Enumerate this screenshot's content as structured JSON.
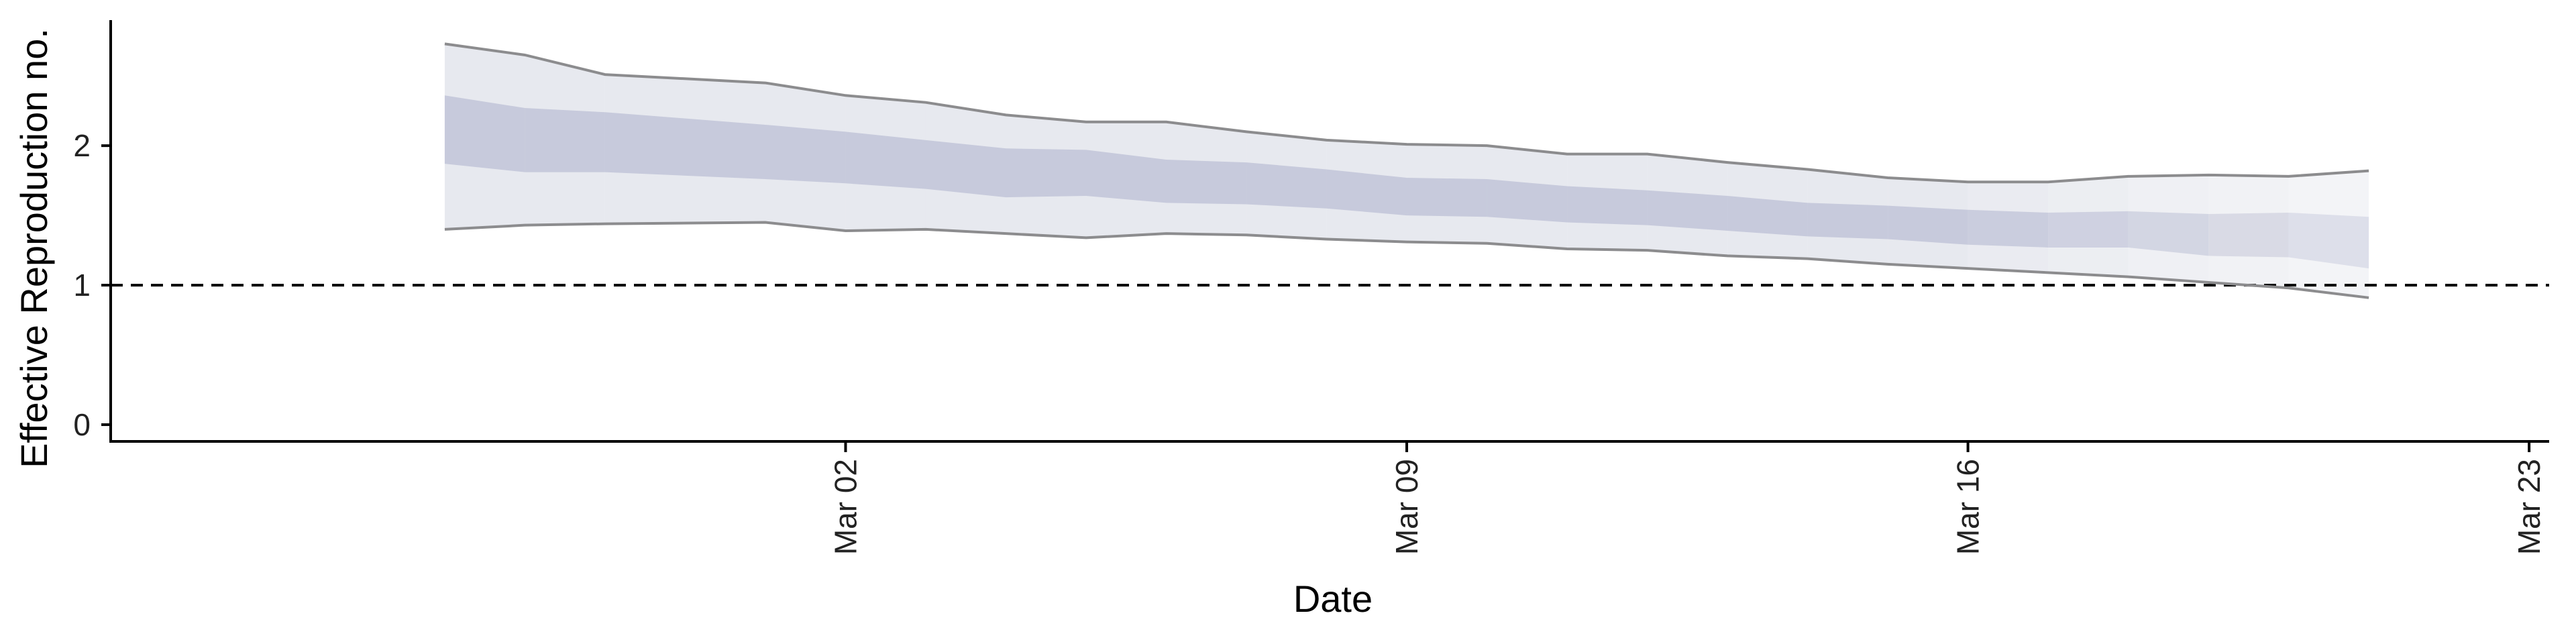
{
  "chart_data": {
    "type": "area",
    "xlabel": "Date",
    "ylabel": "Effective Reproduction no.",
    "x_ticks": [
      {
        "date": "2020-03-02",
        "label": "Mar 02"
      },
      {
        "date": "2020-03-09",
        "label": "Mar 09"
      },
      {
        "date": "2020-03-16",
        "label": "Mar 16"
      },
      {
        "date": "2020-03-23",
        "label": "Mar 23"
      }
    ],
    "y_ticks": [
      0,
      1,
      2
    ],
    "xlim": [
      "2020-02-21T20:00",
      "2020-03-23T06:00"
    ],
    "ylim": [
      -0.12,
      2.9
    ],
    "reference_line": 1,
    "grid": false,
    "colors": {
      "outer_band": "#e6e8ee",
      "inner_band": "#c3c6d9",
      "outer_line": "#8c8c8e",
      "reference_line": "#000000"
    },
    "series": [
      {
        "x": "2020-02-26",
        "lower_outer": 1.4,
        "lower_inner": 1.87,
        "upper_inner": 2.36,
        "upper_outer": 2.73
      },
      {
        "x": "2020-02-27",
        "lower_outer": 1.43,
        "lower_inner": 1.81,
        "upper_inner": 2.27,
        "upper_outer": 2.65
      },
      {
        "x": "2020-02-28",
        "lower_outer": 1.44,
        "lower_inner": 1.81,
        "upper_inner": 2.24,
        "upper_outer": 2.51
      },
      {
        "x": "2020-03-01",
        "lower_outer": 1.45,
        "lower_inner": 1.76,
        "upper_inner": 2.15,
        "upper_outer": 2.45
      },
      {
        "x": "2020-03-02",
        "lower_outer": 1.39,
        "lower_inner": 1.73,
        "upper_inner": 2.1,
        "upper_outer": 2.36
      },
      {
        "x": "2020-03-03",
        "lower_outer": 1.4,
        "lower_inner": 1.69,
        "upper_inner": 2.04,
        "upper_outer": 2.31
      },
      {
        "x": "2020-03-04",
        "lower_outer": 1.37,
        "lower_inner": 1.63,
        "upper_inner": 1.98,
        "upper_outer": 2.22
      },
      {
        "x": "2020-03-05",
        "lower_outer": 1.34,
        "lower_inner": 1.64,
        "upper_inner": 1.97,
        "upper_outer": 2.17
      },
      {
        "x": "2020-03-06",
        "lower_outer": 1.37,
        "lower_inner": 1.59,
        "upper_inner": 1.9,
        "upper_outer": 2.17
      },
      {
        "x": "2020-03-07",
        "lower_outer": 1.36,
        "lower_inner": 1.58,
        "upper_inner": 1.88,
        "upper_outer": 2.1
      },
      {
        "x": "2020-03-08",
        "lower_outer": 1.33,
        "lower_inner": 1.55,
        "upper_inner": 1.83,
        "upper_outer": 2.04
      },
      {
        "x": "2020-03-09",
        "lower_outer": 1.31,
        "lower_inner": 1.5,
        "upper_inner": 1.77,
        "upper_outer": 2.01
      },
      {
        "x": "2020-03-10",
        "lower_outer": 1.3,
        "lower_inner": 1.49,
        "upper_inner": 1.76,
        "upper_outer": 2.0
      },
      {
        "x": "2020-03-11",
        "lower_outer": 1.26,
        "lower_inner": 1.45,
        "upper_inner": 1.71,
        "upper_outer": 1.94
      },
      {
        "x": "2020-03-12",
        "lower_outer": 1.25,
        "lower_inner": 1.43,
        "upper_inner": 1.68,
        "upper_outer": 1.94
      },
      {
        "x": "2020-03-13",
        "lower_outer": 1.21,
        "lower_inner": 1.39,
        "upper_inner": 1.64,
        "upper_outer": 1.88
      },
      {
        "x": "2020-03-14",
        "lower_outer": 1.19,
        "lower_inner": 1.35,
        "upper_inner": 1.59,
        "upper_outer": 1.83
      },
      {
        "x": "2020-03-15",
        "lower_outer": 1.15,
        "lower_inner": 1.33,
        "upper_inner": 1.57,
        "upper_outer": 1.77
      },
      {
        "x": "2020-03-16",
        "lower_outer": 1.12,
        "lower_inner": 1.29,
        "upper_inner": 1.54,
        "upper_outer": 1.74
      },
      {
        "x": "2020-03-17",
        "lower_outer": 1.09,
        "lower_inner": 1.27,
        "upper_inner": 1.52,
        "upper_outer": 1.74
      },
      {
        "x": "2020-03-18",
        "lower_outer": 1.06,
        "lower_inner": 1.27,
        "upper_inner": 1.53,
        "upper_outer": 1.78
      },
      {
        "x": "2020-03-19",
        "lower_outer": 1.02,
        "lower_inner": 1.21,
        "upper_inner": 1.51,
        "upper_outer": 1.79
      },
      {
        "x": "2020-03-20",
        "lower_outer": 0.98,
        "lower_inner": 1.2,
        "upper_inner": 1.52,
        "upper_outer": 1.78
      },
      {
        "x": "2020-03-21",
        "lower_outer": 0.91,
        "lower_inner": 1.12,
        "upper_inner": 1.49,
        "upper_outer": 1.82
      }
    ]
  }
}
